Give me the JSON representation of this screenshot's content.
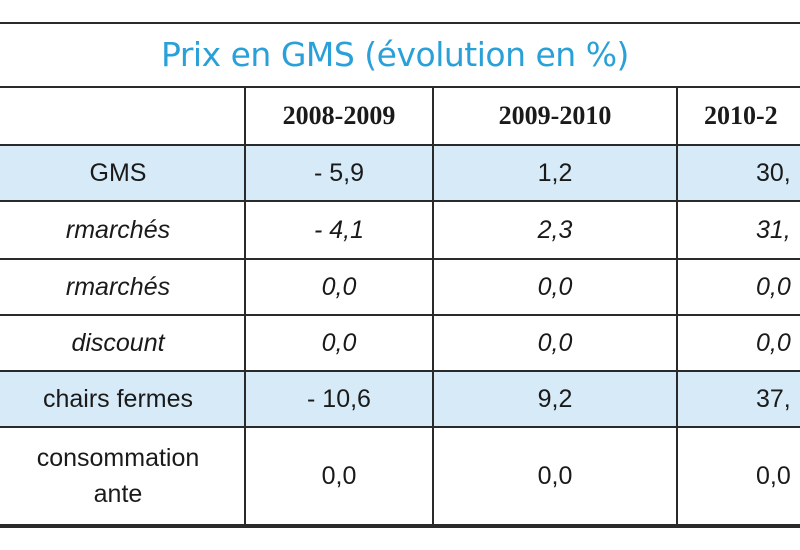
{
  "title": "Prix en GMS (évolution en %)",
  "table": {
    "headers": [
      "",
      "2008-2009",
      "2009-2010",
      "2010-2"
    ],
    "rows": [
      {
        "label": "GMS",
        "values": [
          "- 5,9",
          "1,2",
          "30,"
        ],
        "shaded": true,
        "italic": false
      },
      {
        "label": "rmarchés",
        "values": [
          "- 4,1",
          "2,3",
          "31,"
        ],
        "shaded": false,
        "italic": true
      },
      {
        "label": "rmarchés",
        "values": [
          "0,0",
          "0,0",
          "0,0"
        ],
        "shaded": false,
        "italic": true
      },
      {
        "label": "discount",
        "values": [
          "0,0",
          "0,0",
          "0,0"
        ],
        "shaded": false,
        "italic": true
      },
      {
        "label": "chairs fermes",
        "values": [
          "- 10,6",
          "9,2",
          "37,"
        ],
        "shaded": true,
        "italic": false
      },
      {
        "label_line1": "consommation",
        "label_line2": "ante",
        "values": [
          "0,0",
          "0,0",
          "0,0"
        ],
        "shaded": false,
        "italic": false
      }
    ]
  },
  "colors": {
    "title": "#2aa0d8",
    "shaded_row": "#d6ebf7",
    "border": "#2a2a2a"
  }
}
